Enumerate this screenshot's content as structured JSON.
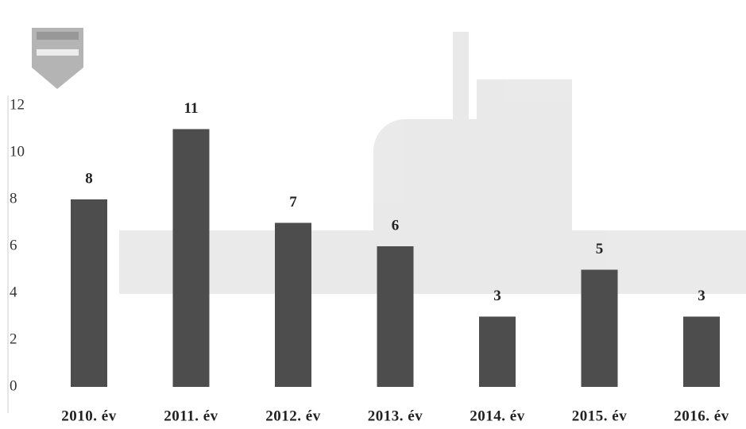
{
  "chart_data": {
    "type": "bar",
    "categories": [
      "2010. év",
      "2011. év",
      "2012. év",
      "2013. év",
      "2014. év",
      "2015. év",
      "2016. év"
    ],
    "values": [
      8,
      11,
      7,
      6,
      3,
      5,
      3
    ],
    "color": "#4d4d4d",
    "ylim": [
      0,
      12
    ],
    "yticks": [
      0,
      2,
      4,
      6,
      8,
      10,
      12
    ],
    "grid": false
  }
}
